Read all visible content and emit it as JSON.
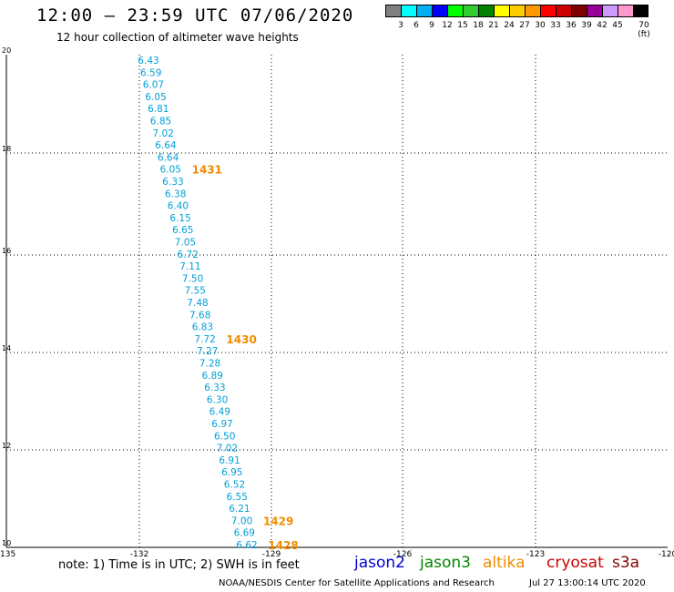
{
  "header": {
    "title": "12:00 – 23:59 UTC 07/06/2020",
    "subtitle": "12 hour collection of altimeter wave heights"
  },
  "colorbar": {
    "colors": [
      "#808080",
      "#00ffff",
      "#00b0f0",
      "#0000ff",
      "#00ff00",
      "#33cc33",
      "#008000",
      "#ffff00",
      "#ffcc00",
      "#ff9900",
      "#ff0000",
      "#cc0000",
      "#800000",
      "#990099",
      "#cc99ff",
      "#ff99cc",
      "#000000"
    ],
    "labels": [
      "3",
      "6",
      "9",
      "12",
      "15",
      "18",
      "21",
      "24",
      "27",
      "30",
      "33",
      "36",
      "39",
      "42",
      "45",
      "70 (ft)"
    ]
  },
  "axes": {
    "lon_ticks": [
      "-135",
      "-132",
      "-129",
      "-126",
      "-123",
      "-120"
    ],
    "lat_ticks": [
      "10",
      "12",
      "14",
      "16",
      "18",
      "20"
    ]
  },
  "track": {
    "color": "#00a0d8",
    "values": [
      "6.43",
      "6.59",
      "6.07",
      "6.05",
      "6.81",
      "6.85",
      "7.02",
      "6.64",
      "6.64",
      "6.05",
      "6.33",
      "6.38",
      "6.40",
      "6.15",
      "6.65",
      "7.05",
      "6.72",
      "7.11",
      "7.50",
      "7.55",
      "7.48",
      "7.68",
      "6.83",
      "7.72",
      "7.27",
      "7.28",
      "6.89",
      "6.33",
      "6.30",
      "6.49",
      "6.97",
      "6.50",
      "7.02",
      "6.91",
      "6.95",
      "6.52",
      "6.55",
      "6.21",
      "7.00",
      "6.69",
      "6.62"
    ]
  },
  "time_labels": {
    "color": "#f08c00",
    "items": [
      {
        "text": "1431",
        "row": 9
      },
      {
        "text": "1430",
        "row": 23
      },
      {
        "text": "1429",
        "row": 38
      },
      {
        "text": "1428",
        "row": 40
      }
    ]
  },
  "footer": {
    "note": "note:  1) Time is in UTC;  2) SWH is in feet",
    "credit": "NOAA/NESDIS Center for Satellite Applications and Research",
    "timestamp": "Jul 27 13:00:14 UTC 2020"
  },
  "legend": [
    {
      "label": "jason2",
      "color": "#0000cc"
    },
    {
      "label": "jason3",
      "color": "#008800"
    },
    {
      "label": "altika",
      "color": "#f08c00"
    },
    {
      "label": "cryosat",
      "color": "#cc0000"
    },
    {
      "label": "s3a",
      "color": "#880000"
    }
  ]
}
